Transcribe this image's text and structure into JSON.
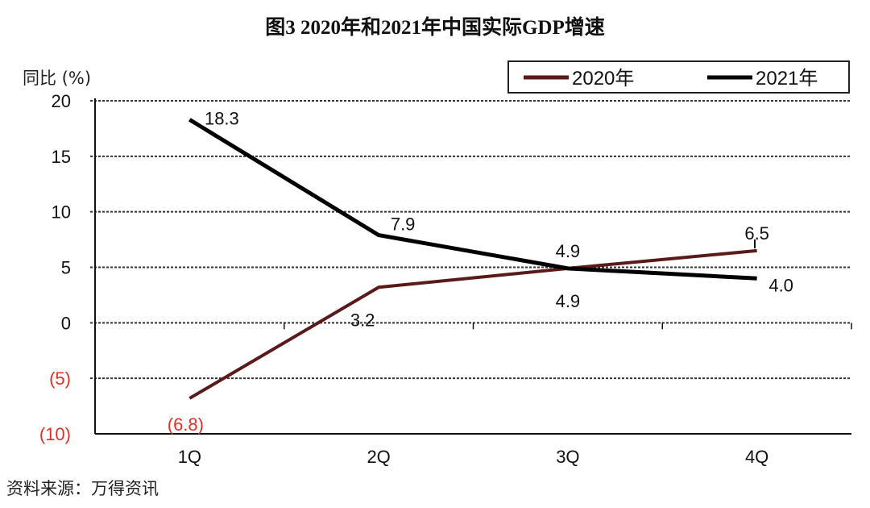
{
  "chart_data": {
    "type": "line",
    "title": "图3  2020年和2021年中国实际GDP增速",
    "ylabel": "同比 (%)",
    "xlabel": "",
    "categories": [
      "1Q",
      "2Q",
      "3Q",
      "4Q"
    ],
    "ylim": [
      -10,
      20
    ],
    "yticks": [
      20,
      15,
      10,
      5,
      0,
      -5,
      -10
    ],
    "ytick_labels": [
      "20",
      "15",
      "10",
      "5",
      "0",
      "(5)",
      "(10)"
    ],
    "grid": true,
    "legend_position": "top-right",
    "series": [
      {
        "name": "2020年",
        "values": [
          -6.8,
          3.2,
          4.9,
          6.5
        ],
        "labels": [
          "(6.8)",
          "3.2",
          "4.9",
          "6.5"
        ],
        "color": "#5b1a1a"
      },
      {
        "name": "2021年",
        "values": [
          18.3,
          7.9,
          4.9,
          4.0
        ],
        "labels": [
          "18.3",
          "7.9",
          "4.9",
          "4.0"
        ],
        "color": "#000000"
      }
    ],
    "negative_label_color": "#e0302a"
  },
  "source": "资料来源：万得资讯"
}
